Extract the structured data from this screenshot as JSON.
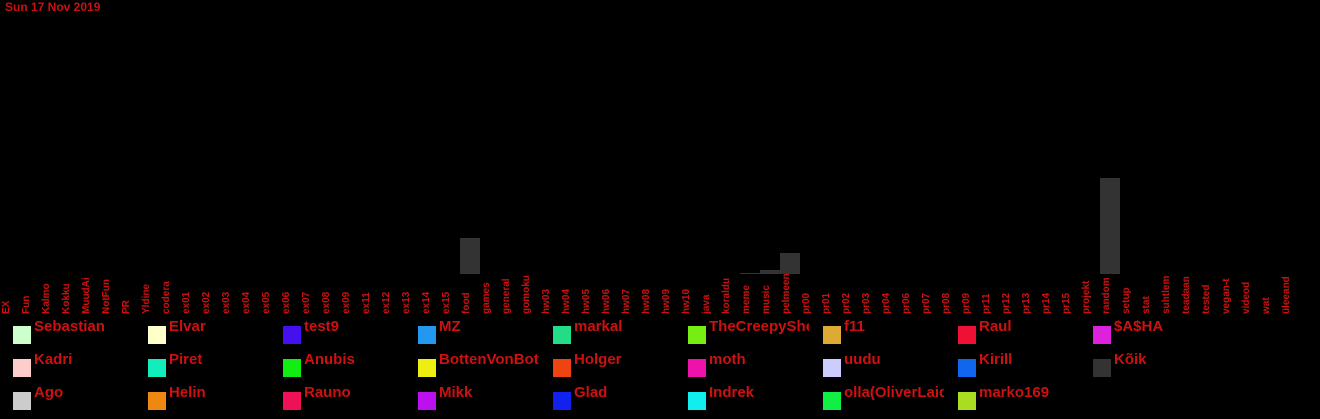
{
  "date": "Sun 17 Nov 2019",
  "colors": {
    "label": "#cc1111",
    "background": "#000000",
    "bar": "#333333"
  },
  "chart_data": {
    "type": "bar",
    "categories": [
      "EX",
      "Fun",
      "Kalmo",
      "Kokku",
      "MuudAi",
      "NotFun",
      "PR",
      "Yldine",
      "codera",
      "ex01",
      "ex02",
      "ex03",
      "ex04",
      "ex05",
      "ex06",
      "ex07",
      "ex08",
      "ex09",
      "ex11",
      "ex12",
      "ex13",
      "ex14",
      "ex15",
      "food",
      "games",
      "general",
      "gomoku",
      "hw03",
      "hw04",
      "hw05",
      "hw06",
      "hw07",
      "hw08",
      "hw09",
      "hw10",
      "java",
      "koraldu",
      "meme",
      "music",
      "pelmeen",
      "pr00",
      "pr01",
      "pr02",
      "pr03",
      "pr04",
      "pr06",
      "pr07",
      "pr08",
      "pr09",
      "pr11",
      "pr12",
      "pr13",
      "pr14",
      "pr15",
      "projekt",
      "random",
      "setup",
      "stat",
      "suhtlem",
      "teadaan",
      "tested",
      "vegan-t",
      "videod",
      "wat",
      "üleeand"
    ],
    "series": [
      {
        "name": "Kõik",
        "values": [
          0,
          0,
          0,
          0,
          0,
          0,
          0,
          0,
          0,
          0,
          0,
          0,
          0,
          0,
          0,
          0,
          0,
          0,
          0,
          0,
          0,
          0,
          0,
          36,
          0,
          0,
          0,
          0,
          0,
          0,
          0,
          0,
          0,
          0,
          0,
          0,
          0,
          1,
          4,
          21,
          0,
          0,
          0,
          0,
          0,
          0,
          0,
          0,
          0,
          0,
          0,
          0,
          0,
          0,
          0,
          96,
          0,
          0,
          0,
          0,
          0,
          0,
          0,
          0,
          0
        ]
      }
    ],
    "ylim": [
      0,
      100
    ],
    "grid": false,
    "legend_position": "bottom"
  },
  "legend": [
    {
      "name": "Sebastian",
      "color": "#ccffcc"
    },
    {
      "name": "Elvar",
      "color": "#ffffcc"
    },
    {
      "name": "test9",
      "color": "#4411ee"
    },
    {
      "name": "MZ",
      "color": "#2299ee"
    },
    {
      "name": "markal",
      "color": "#22dd88"
    },
    {
      "name": "TheCreepySheep",
      "color": "#77ee11"
    },
    {
      "name": "f11",
      "color": "#ddaa33"
    },
    {
      "name": "Raul",
      "color": "#ee1133"
    },
    {
      "name": "$A$HA",
      "color": "#dd22dd"
    },
    {
      "name": "Kadri",
      "color": "#ffcccc"
    },
    {
      "name": "Piret",
      "color": "#11eebb"
    },
    {
      "name": "Anubis",
      "color": "#11ee11"
    },
    {
      "name": "BottenVonBot",
      "color": "#eeee11"
    },
    {
      "name": "Holger",
      "color": "#ee4411"
    },
    {
      "name": "moth",
      "color": "#ee11aa"
    },
    {
      "name": "uudu",
      "color": "#ccccff"
    },
    {
      "name": "Kirill",
      "color": "#1166ee"
    },
    {
      "name": "Kõik",
      "color": "#333333"
    },
    {
      "name": "Ago",
      "color": "#cccccc"
    },
    {
      "name": "Helin",
      "color": "#ee8811"
    },
    {
      "name": "Rauno",
      "color": "#ee1155"
    },
    {
      "name": "Mikk",
      "color": "#bb11ee"
    },
    {
      "name": "Glad",
      "color": "#1122ee"
    },
    {
      "name": "Indrek",
      "color": "#11eeee"
    },
    {
      "name": "olla(OliverLaidoja)",
      "color": "#11ee44"
    },
    {
      "name": "marko169",
      "color": "#aadd22"
    }
  ]
}
